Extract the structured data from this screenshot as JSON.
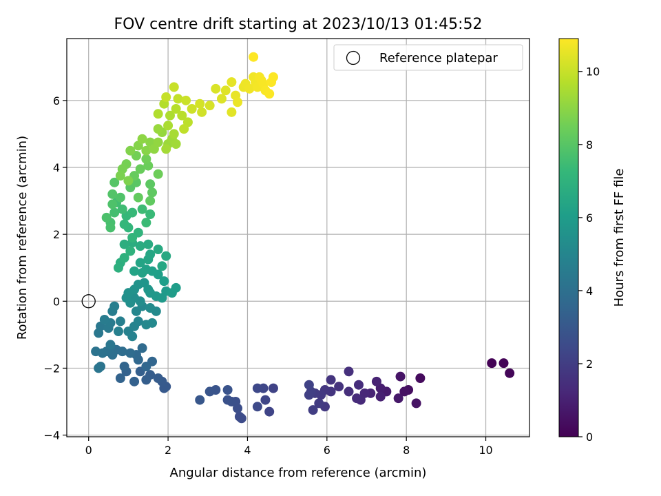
{
  "chart_data": {
    "type": "scatter",
    "title": "FOV centre drift starting at 2023/10/13 01:45:52",
    "xlabel": "Angular distance from reference (arcmin)",
    "ylabel": "Rotation from reference (arcmin)",
    "xlim": [
      -0.55,
      11.1
    ],
    "ylim": [
      -4.05,
      7.85
    ],
    "xticks": [
      0,
      2,
      4,
      6,
      8,
      10
    ],
    "yticks": [
      -4,
      -2,
      0,
      2,
      4,
      6
    ],
    "grid": true,
    "legend": {
      "position": "top-right",
      "entries": [
        "Reference platepar"
      ]
    },
    "reference_point": {
      "x": 0,
      "y": 0,
      "label": "Reference platepar"
    },
    "colorbar": {
      "label": "Hours from first FF file",
      "range": [
        0,
        10.9
      ],
      "ticks": [
        0,
        2,
        4,
        6,
        8,
        10
      ],
      "colormap": "viridis"
    },
    "points": [
      [
        10.15,
        -1.85,
        0.05
      ],
      [
        10.45,
        -1.85,
        0.1
      ],
      [
        10.6,
        -2.15,
        0.15
      ],
      [
        8.35,
        -2.3,
        0.3
      ],
      [
        8.05,
        -2.65,
        0.4
      ],
      [
        7.95,
        -2.7,
        0.5
      ],
      [
        8.25,
        -3.05,
        0.55
      ],
      [
        7.85,
        -2.25,
        0.6
      ],
      [
        7.8,
        -2.9,
        0.7
      ],
      [
        7.5,
        -2.7,
        0.8
      ],
      [
        7.35,
        -2.6,
        0.9
      ],
      [
        7.35,
        -2.85,
        1.0
      ],
      [
        7.25,
        -2.4,
        1.05
      ],
      [
        7.1,
        -2.75,
        1.1
      ],
      [
        6.95,
        -2.75,
        1.2
      ],
      [
        6.85,
        -2.95,
        1.3
      ],
      [
        6.75,
        -2.9,
        1.35
      ],
      [
        6.8,
        -2.5,
        1.4
      ],
      [
        6.55,
        -2.7,
        1.45
      ],
      [
        6.55,
        -2.1,
        1.5
      ],
      [
        6.3,
        -2.55,
        1.6
      ],
      [
        6.1,
        -2.35,
        1.65
      ],
      [
        6.1,
        -2.7,
        1.7
      ],
      [
        5.95,
        -2.65,
        1.75
      ],
      [
        5.95,
        -3.15,
        1.8
      ],
      [
        5.85,
        -2.8,
        1.85
      ],
      [
        5.8,
        -3.05,
        1.9
      ],
      [
        5.7,
        -2.75,
        1.95
      ],
      [
        5.65,
        -3.25,
        2.0
      ],
      [
        5.6,
        -2.7,
        2.05
      ],
      [
        5.55,
        -2.8,
        2.1
      ],
      [
        5.55,
        -2.5,
        2.15
      ],
      [
        4.65,
        -2.6,
        2.2
      ],
      [
        4.55,
        -3.3,
        2.25
      ],
      [
        4.45,
        -2.95,
        2.3
      ],
      [
        4.4,
        -2.6,
        2.35
      ],
      [
        4.25,
        -2.6,
        2.4
      ],
      [
        4.25,
        -3.15,
        2.45
      ],
      [
        3.85,
        -3.5,
        2.5
      ],
      [
        3.8,
        -3.45,
        2.55
      ],
      [
        3.75,
        -3.2,
        2.6
      ],
      [
        3.7,
        -3.0,
        2.65
      ],
      [
        3.6,
        -3.0,
        2.7
      ],
      [
        3.5,
        -2.95,
        2.75
      ],
      [
        3.5,
        -2.65,
        2.8
      ],
      [
        3.2,
        -2.65,
        2.85
      ],
      [
        3.05,
        -2.7,
        2.9
      ],
      [
        2.8,
        -2.95,
        2.95
      ],
      [
        1.95,
        -2.55,
        3.0
      ],
      [
        1.9,
        -2.6,
        3.05
      ],
      [
        1.85,
        -2.4,
        3.1
      ],
      [
        1.75,
        -2.3,
        3.15
      ],
      [
        1.55,
        -2.2,
        3.2
      ],
      [
        1.45,
        -2.35,
        3.25
      ],
      [
        1.3,
        -2.1,
        3.3
      ],
      [
        1.15,
        -2.4,
        3.35
      ],
      [
        0.95,
        -2.1,
        3.4
      ],
      [
        0.8,
        -2.3,
        3.45
      ],
      [
        0.9,
        -1.95,
        3.5
      ],
      [
        1.6,
        -1.8,
        3.55
      ],
      [
        1.45,
        -1.95,
        3.6
      ],
      [
        1.25,
        -1.75,
        3.65
      ],
      [
        1.2,
        -1.6,
        3.7
      ],
      [
        1.35,
        -1.4,
        3.75
      ],
      [
        1.05,
        -1.55,
        3.8
      ],
      [
        0.85,
        -1.5,
        3.85
      ],
      [
        0.7,
        -1.45,
        3.9
      ],
      [
        0.6,
        -1.6,
        3.95
      ],
      [
        0.55,
        -1.4,
        4.0
      ],
      [
        0.45,
        -1.5,
        4.05
      ],
      [
        0.35,
        -1.55,
        4.1
      ],
      [
        0.18,
        -1.5,
        4.15
      ],
      [
        0.3,
        -1.95,
        4.2
      ],
      [
        0.25,
        -2.0,
        4.25
      ],
      [
        0.55,
        -1.3,
        4.3
      ],
      [
        0.25,
        -0.95,
        4.35
      ],
      [
        0.3,
        -0.75,
        4.4
      ],
      [
        0.5,
        -0.8,
        4.45
      ],
      [
        0.55,
        -0.65,
        4.5
      ],
      [
        0.4,
        -0.55,
        4.55
      ],
      [
        0.6,
        -0.3,
        4.6
      ],
      [
        0.65,
        -0.15,
        4.65
      ],
      [
        0.8,
        -0.6,
        4.7
      ],
      [
        0.75,
        -0.9,
        4.75
      ],
      [
        1.0,
        -0.9,
        4.8
      ],
      [
        1.1,
        -1.05,
        4.85
      ],
      [
        1.15,
        -0.75,
        4.9
      ],
      [
        1.25,
        -0.6,
        4.95
      ],
      [
        1.2,
        -0.3,
        5.0
      ],
      [
        1.35,
        -0.15,
        5.05
      ],
      [
        1.45,
        -0.7,
        5.1
      ],
      [
        1.6,
        -0.65,
        5.15
      ],
      [
        1.7,
        -0.3,
        5.2
      ],
      [
        1.55,
        -0.2,
        5.25
      ],
      [
        1.3,
        0.0,
        5.3
      ],
      [
        1.15,
        0.1,
        5.35
      ],
      [
        1.05,
        -0.05,
        5.4
      ],
      [
        0.95,
        0.1,
        5.45
      ],
      [
        1.0,
        0.25,
        5.5
      ],
      [
        1.15,
        0.35,
        5.55
      ],
      [
        1.25,
        0.5,
        5.6
      ],
      [
        1.4,
        0.55,
        5.65
      ],
      [
        1.5,
        0.35,
        5.7
      ],
      [
        1.55,
        0.25,
        5.75
      ],
      [
        1.7,
        0.15,
        5.8
      ],
      [
        1.85,
        0.1,
        5.85
      ],
      [
        1.95,
        0.3,
        5.9
      ],
      [
        2.1,
        0.25,
        5.95
      ],
      [
        2.2,
        0.4,
        6.0
      ],
      [
        1.9,
        0.6,
        6.05
      ],
      [
        1.75,
        0.8,
        6.1
      ],
      [
        1.6,
        0.9,
        6.15
      ],
      [
        1.45,
        0.95,
        6.2
      ],
      [
        1.35,
        0.85,
        6.25
      ],
      [
        1.15,
        0.9,
        6.3
      ],
      [
        1.3,
        1.15,
        6.35
      ],
      [
        1.5,
        1.25,
        6.4
      ],
      [
        1.55,
        1.4,
        6.45
      ],
      [
        1.85,
        1.05,
        6.5
      ],
      [
        1.95,
        1.35,
        6.55
      ],
      [
        1.75,
        1.55,
        6.6
      ],
      [
        1.5,
        1.7,
        6.65
      ],
      [
        1.3,
        1.65,
        6.7
      ],
      [
        1.1,
        1.75,
        6.75
      ],
      [
        0.9,
        1.7,
        6.8
      ],
      [
        0.8,
        1.15,
        6.85
      ],
      [
        0.75,
        1.0,
        6.9
      ],
      [
        0.9,
        1.3,
        6.95
      ],
      [
        1.05,
        1.5,
        7.0
      ],
      [
        1.25,
        2.05,
        7.05
      ],
      [
        1.1,
        1.9,
        7.1
      ],
      [
        1.0,
        2.2,
        7.15
      ],
      [
        0.9,
        2.3,
        7.2
      ],
      [
        0.95,
        2.55,
        7.25
      ],
      [
        1.1,
        2.65,
        7.3
      ],
      [
        1.55,
        2.6,
        7.35
      ],
      [
        1.45,
        2.35,
        7.4
      ],
      [
        1.35,
        2.75,
        7.45
      ],
      [
        0.85,
        2.75,
        7.5
      ],
      [
        0.7,
        2.95,
        7.55
      ],
      [
        0.65,
        2.65,
        7.6
      ],
      [
        0.55,
        2.35,
        7.65
      ],
      [
        0.55,
        2.2,
        7.7
      ],
      [
        0.45,
        2.5,
        7.75
      ],
      [
        0.6,
        2.9,
        7.8
      ],
      [
        0.8,
        3.1,
        7.85
      ],
      [
        0.6,
        3.2,
        7.9
      ],
      [
        0.65,
        3.55,
        7.95
      ],
      [
        1.05,
        3.4,
        8.0
      ],
      [
        1.2,
        3.55,
        8.05
      ],
      [
        1.55,
        3.5,
        8.1
      ],
      [
        1.6,
        3.25,
        8.15
      ],
      [
        1.55,
        3.0,
        8.2
      ],
      [
        1.25,
        3.1,
        8.25
      ],
      [
        1.15,
        3.75,
        8.3
      ],
      [
        1.3,
        3.95,
        8.35
      ],
      [
        1.5,
        4.05,
        8.4
      ],
      [
        1.75,
        3.8,
        8.45
      ],
      [
        1.45,
        4.25,
        8.5
      ],
      [
        1.2,
        4.35,
        8.55
      ],
      [
        0.95,
        4.1,
        8.6
      ],
      [
        0.85,
        3.95,
        8.65
      ],
      [
        0.8,
        3.75,
        8.7
      ],
      [
        1.0,
        3.6,
        8.75
      ],
      [
        1.05,
        4.5,
        8.8
      ],
      [
        1.25,
        4.65,
        8.85
      ],
      [
        1.45,
        4.5,
        8.9
      ],
      [
        1.55,
        4.75,
        8.95
      ],
      [
        1.35,
        4.85,
        9.0
      ],
      [
        1.65,
        4.55,
        9.05
      ],
      [
        1.75,
        4.75,
        9.1
      ],
      [
        1.85,
        5.05,
        9.15
      ],
      [
        1.75,
        5.15,
        9.2
      ],
      [
        2.0,
        4.7,
        9.25
      ],
      [
        2.1,
        4.85,
        9.3
      ],
      [
        2.2,
        4.7,
        9.35
      ],
      [
        1.95,
        4.55,
        9.4
      ],
      [
        2.15,
        5.0,
        9.45
      ],
      [
        2.0,
        5.25,
        9.5
      ],
      [
        2.05,
        5.55,
        9.55
      ],
      [
        1.75,
        5.6,
        9.6
      ],
      [
        1.9,
        5.9,
        9.65
      ],
      [
        2.2,
        5.75,
        9.7
      ],
      [
        2.35,
        5.55,
        9.75
      ],
      [
        2.5,
        5.35,
        9.8
      ],
      [
        2.4,
        5.15,
        9.85
      ],
      [
        2.25,
        6.05,
        9.9
      ],
      [
        1.95,
        6.1,
        9.95
      ],
      [
        2.15,
        6.4,
        10.0
      ],
      [
        2.45,
        6.0,
        10.05
      ],
      [
        2.6,
        5.75,
        10.1
      ],
      [
        2.85,
        5.65,
        10.15
      ],
      [
        2.8,
        5.9,
        10.2
      ],
      [
        3.05,
        5.85,
        10.25
      ],
      [
        3.2,
        6.35,
        10.3
      ],
      [
        3.35,
        6.05,
        10.35
      ],
      [
        3.45,
        6.3,
        10.4
      ],
      [
        3.6,
        5.65,
        10.45
      ],
      [
        3.6,
        6.55,
        10.5
      ],
      [
        3.7,
        6.15,
        10.55
      ],
      [
        3.75,
        5.95,
        10.6
      ],
      [
        3.9,
        6.4,
        10.62
      ],
      [
        3.95,
        6.5,
        10.65
      ],
      [
        4.05,
        6.35,
        10.68
      ],
      [
        4.15,
        6.7,
        10.7
      ],
      [
        4.2,
        6.55,
        10.72
      ],
      [
        4.25,
        6.4,
        10.75
      ],
      [
        4.3,
        6.7,
        10.78
      ],
      [
        4.35,
        6.6,
        10.8
      ],
      [
        4.4,
        6.5,
        10.82
      ],
      [
        4.45,
        6.3,
        10.84
      ],
      [
        4.55,
        6.2,
        10.86
      ],
      [
        4.6,
        6.55,
        10.88
      ],
      [
        4.65,
        6.7,
        10.89
      ],
      [
        4.15,
        7.3,
        10.9
      ]
    ]
  }
}
